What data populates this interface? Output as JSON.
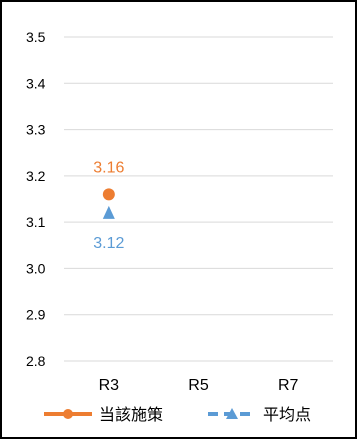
{
  "chart_data": {
    "type": "scatter",
    "title": "",
    "xlabel": "",
    "ylabel": "",
    "categories": [
      "R3",
      "R5",
      "R7"
    ],
    "ylim": [
      2.8,
      3.5
    ],
    "yticks": [
      "3.5",
      "3.4",
      "3.3",
      "3.2",
      "3.1",
      "3.0",
      "2.9",
      "2.8"
    ],
    "grid": true,
    "legend_position": "bottom",
    "series": [
      {
        "name": "当該施策",
        "marker": "circle",
        "line_style": "solid",
        "color": "#ED7D31",
        "values": [
          3.16,
          null,
          null
        ],
        "labels": [
          "3.16",
          "",
          ""
        ]
      },
      {
        "name": "平均点",
        "marker": "triangle",
        "line_style": "dashed",
        "color": "#5B9BD5",
        "values": [
          3.12,
          null,
          null
        ],
        "labels": [
          "3.12",
          "",
          ""
        ]
      }
    ]
  }
}
